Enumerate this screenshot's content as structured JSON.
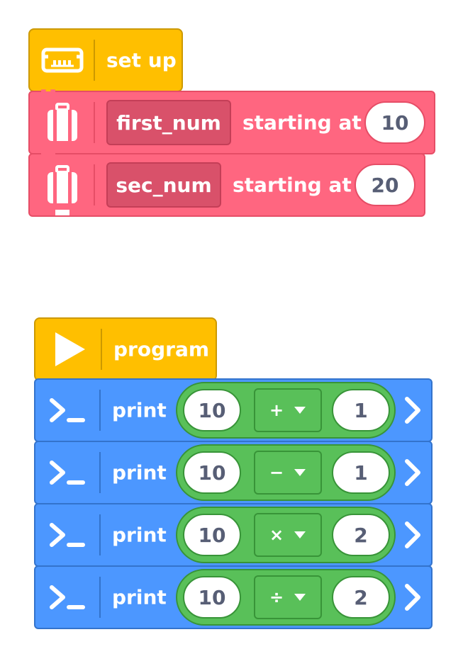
{
  "setup": {
    "hat_label": "set up",
    "vars": [
      {
        "name": "first_num",
        "label": "starting at",
        "value": "10"
      },
      {
        "name": "sec_num",
        "label": "starting at",
        "value": "20"
      }
    ]
  },
  "program": {
    "hat_label": "program",
    "prints": [
      {
        "label": "print",
        "left": "10",
        "op": "+",
        "right": "1"
      },
      {
        "label": "print",
        "left": "10",
        "op": "−",
        "right": "1"
      },
      {
        "label": "print",
        "left": "10",
        "op": "×",
        "right": "2"
      },
      {
        "label": "print",
        "left": "10",
        "op": "÷",
        "right": "2"
      }
    ]
  },
  "colors": {
    "events": "#FFBF00",
    "variables": "#FF6680",
    "print": "#4C97FF",
    "operators": "#59C059"
  },
  "icons": [
    "robot-brain-icon",
    "suitcase-icon",
    "play-icon",
    "terminal-prompt-icon",
    "chevron-right-icon",
    "dropdown-arrow-icon"
  ]
}
